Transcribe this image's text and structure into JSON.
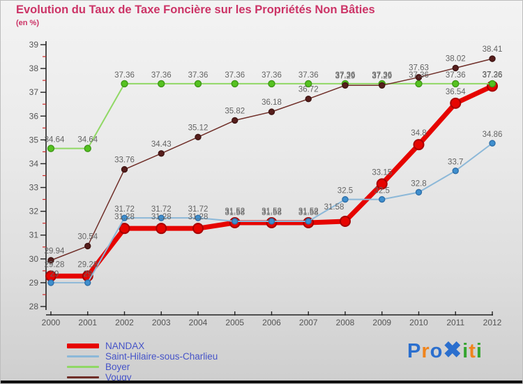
{
  "chart_data": {
    "type": "line",
    "title": "Evolution du Taux de Taxe Foncière sur les Propriétés Non Bâties",
    "subtitle": "(en %)",
    "x": [
      2000,
      2001,
      2002,
      2003,
      2004,
      2005,
      2006,
      2007,
      2008,
      2009,
      2010,
      2011,
      2012
    ],
    "ylim": [
      28,
      39
    ],
    "yticks": [
      28,
      29,
      30,
      31,
      32,
      33,
      34,
      35,
      36,
      37,
      38,
      39
    ],
    "grid": false,
    "legend_position": "bottom-left",
    "axis_color": "#222222",
    "minor_tick_color": "#cc2a2a",
    "tick_label_color": "#555555",
    "data_label_color": "#646464",
    "series": [
      {
        "name": "NANDAX",
        "color": "#e60400",
        "marker_fill": "#e60400",
        "marker_stroke": "#a80000",
        "line_width": 7,
        "marker_r": 7,
        "values": [
          29.28,
          29.28,
          31.28,
          31.28,
          31.28,
          31.52,
          31.52,
          31.52,
          31.58,
          33.15,
          34.8,
          36.54,
          37.26
        ],
        "labels": [
          "29.28",
          "29.28",
          "31.28",
          "31.28",
          "31.28",
          "31.52",
          "31.52",
          "31.52",
          "31.58",
          "33.15",
          "34.8",
          "36.54",
          "37.26"
        ]
      },
      {
        "name": "Saint-Hilaire-sous-Charlieu",
        "color": "#8cb8d8",
        "marker_fill": "#3f8fce",
        "marker_stroke": "#2f6fa8",
        "line_width": 2,
        "marker_r": 4,
        "values": [
          29,
          29,
          31.72,
          31.72,
          31.72,
          31.58,
          31.58,
          31.58,
          32.5,
          32.5,
          32.8,
          33.7,
          34.86
        ],
        "labels": [
          "29",
          "29",
          "31.72",
          "31.72",
          "31.72",
          "31.58",
          "31.58",
          "31.58",
          "32.5",
          "32.5",
          "32.8",
          "33.7",
          "34.86"
        ]
      },
      {
        "name": "Boyer",
        "color": "#90d865",
        "marker_fill": "#55c220",
        "marker_stroke": "#3f9718",
        "line_width": 2,
        "marker_r": 4.5,
        "values": [
          34.64,
          34.64,
          37.36,
          37.36,
          37.36,
          37.36,
          37.36,
          37.36,
          37.36,
          37.36,
          37.36,
          37.36,
          37.36
        ],
        "labels": [
          "34.64",
          "34.64",
          "37.36",
          "37.36",
          "37.36",
          "37.36",
          "37.36",
          "37.36",
          "37.36",
          "37.36",
          "37.36",
          "37.36",
          "37.36"
        ]
      },
      {
        "name": "Vougy",
        "color": "#6f2e28",
        "marker_fill": "#571e1c",
        "marker_stroke": "#3f1513",
        "line_width": 1.5,
        "marker_r": 4,
        "values": [
          29.94,
          30.54,
          33.76,
          34.43,
          35.12,
          35.82,
          36.18,
          36.72,
          37.29,
          37.29,
          37.63,
          38.02,
          38.41
        ],
        "labels": [
          "29.94",
          "30.54",
          "33.76",
          "34.43",
          "35.12",
          "35.82",
          "36.18",
          "36.72",
          "37.29",
          "37.29",
          "37.63",
          "38.02",
          "38.41"
        ]
      }
    ]
  },
  "legend": {
    "items": [
      "NANDAX",
      "Saint-Hilaire-sous-Charlieu",
      "Boyer",
      "Vougy"
    ]
  },
  "logo": {
    "name": "proxiti-logo",
    "letters": [
      {
        "ch": "P",
        "color": "#2b6fce"
      },
      {
        "ch": "r",
        "color": "#f0841c"
      },
      {
        "ch": "o",
        "color": "#2b6fce"
      },
      {
        "ch": "✖",
        "color": "#2b6fce"
      },
      {
        "ch": "i",
        "color": "#35a52f"
      },
      {
        "ch": "t",
        "color": "#f0841c"
      },
      {
        "ch": "i",
        "color": "#35a52f"
      }
    ]
  }
}
